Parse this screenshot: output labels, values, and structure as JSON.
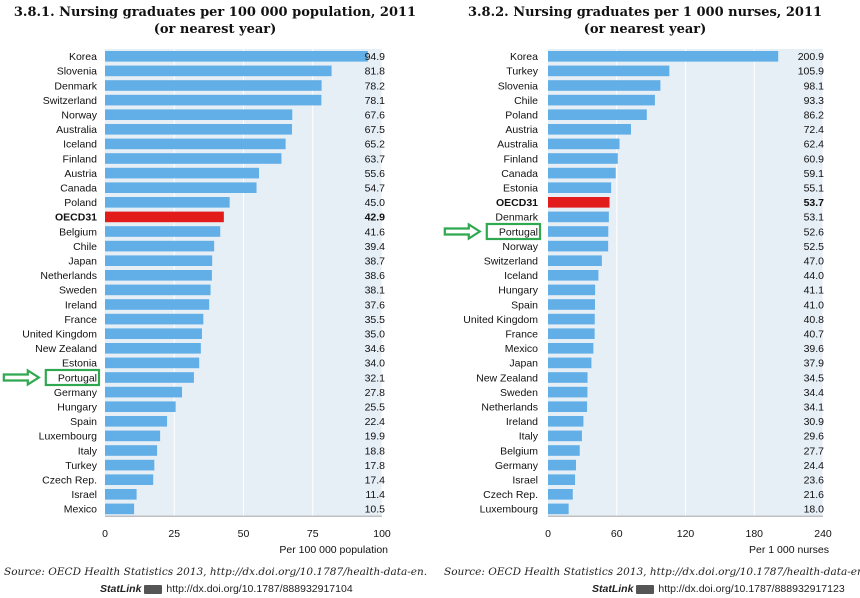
{
  "chart_data": [
    {
      "type": "bar",
      "orientation": "horizontal",
      "title": "3.8.1. Nursing graduates per 100 000 population, 2011",
      "subtitle": "(or nearest year)",
      "xlabel": "Per 100 000 population",
      "xlim": [
        0,
        100
      ],
      "xticks": [
        0,
        25,
        50,
        75,
        100
      ],
      "grid": true,
      "categories": [
        "Korea",
        "Slovenia",
        "Denmark",
        "Switzerland",
        "Norway",
        "Australia",
        "Iceland",
        "Finland",
        "Austria",
        "Canada",
        "Poland",
        "OECD31",
        "Belgium",
        "Chile",
        "Japan",
        "Netherlands",
        "Sweden",
        "Ireland",
        "France",
        "United Kingdom",
        "New Zealand",
        "Estonia",
        "Portugal",
        "Germany",
        "Hungary",
        "Spain",
        "Luxembourg",
        "Italy",
        "Turkey",
        "Czech Rep.",
        "Israel",
        "Mexico"
      ],
      "values": [
        94.9,
        81.8,
        78.2,
        78.1,
        67.6,
        67.5,
        65.2,
        63.7,
        55.6,
        54.7,
        45.0,
        42.9,
        41.6,
        39.4,
        38.7,
        38.6,
        38.1,
        37.6,
        35.5,
        35.0,
        34.6,
        34.0,
        32.1,
        27.8,
        25.5,
        22.4,
        19.9,
        18.8,
        17.8,
        17.4,
        11.4,
        10.5
      ],
      "value_labels": [
        "94.9",
        "81.8",
        "78.2",
        "78.1",
        "67.6",
        "67.5",
        "65.2",
        "63.7",
        "55.6",
        "54.7",
        "45.0",
        "42.9",
        "41.6",
        "39.4",
        "38.7",
        "38.6",
        "38.1",
        "37.6",
        "35.5",
        "35.0",
        "34.6",
        "34.0",
        "32.1",
        "27.8",
        "25.5",
        "22.4",
        "19.9",
        "18.8",
        "17.8",
        "17.4",
        "11.4",
        "10.5"
      ],
      "highlight": "OECD31",
      "marked": "Portugal"
    },
    {
      "type": "bar",
      "orientation": "horizontal",
      "title": "3.8.2. Nursing graduates per 1 000 nurses, 2011",
      "subtitle": "(or nearest year)",
      "xlabel": "Per 1 000 nurses",
      "xlim": [
        0,
        240
      ],
      "xticks": [
        0,
        60,
        120,
        180,
        240
      ],
      "grid": true,
      "categories": [
        "Korea",
        "Turkey",
        "Slovenia",
        "Chile",
        "Poland",
        "Austria",
        "Australia",
        "Finland",
        "Canada",
        "Estonia",
        "OECD31",
        "Denmark",
        "Portugal",
        "Norway",
        "Switzerland",
        "Iceland",
        "Hungary",
        "Spain",
        "United Kingdom",
        "France",
        "Mexico",
        "Japan",
        "New Zealand",
        "Sweden",
        "Netherlands",
        "Ireland",
        "Italy",
        "Belgium",
        "Germany",
        "Israel",
        "Czech Rep.",
        "Luxembourg"
      ],
      "values": [
        200.9,
        105.9,
        98.1,
        93.3,
        86.2,
        72.4,
        62.4,
        60.9,
        59.1,
        55.1,
        53.7,
        53.1,
        52.6,
        52.5,
        47.0,
        44.0,
        41.1,
        41.0,
        40.8,
        40.7,
        39.6,
        37.9,
        34.5,
        34.4,
        34.1,
        30.9,
        29.6,
        27.7,
        24.4,
        23.6,
        21.6,
        18.0
      ],
      "value_labels": [
        "200.9",
        "105.9",
        "98.1",
        "93.3",
        "86.2",
        "72.4",
        "62.4",
        "60.9",
        "59.1",
        "55.1",
        "53.7",
        "53.1",
        "52.6",
        "52.5",
        "47.0",
        "44.0",
        "41.1",
        "41.0",
        "40.8",
        "40.7",
        "39.6",
        "37.9",
        "34.5",
        "34.4",
        "34.1",
        "30.9",
        "29.6",
        "27.7",
        "24.4",
        "23.6",
        "21.6",
        "18.0"
      ],
      "highlight": "OECD31",
      "marked": "Portugal"
    }
  ],
  "colors": {
    "bar": "#62aee6",
    "highlight": "#e21b1b",
    "plot_bg": "#e6eef6",
    "marker": "#2fa84f"
  },
  "icons": {
    "arrow": "arrow-right-icon",
    "statlink_logo": "statlink-logo-icon"
  },
  "footer": [
    {
      "source": "Source: OECD Health Statistics 2013, http://dx.doi.org/10.1787/health-data-en.",
      "statlink_label": "StatLink",
      "statlink_url": "http://dx.doi.org/10.1787/888932917104"
    },
    {
      "source": "Source: OECD Health Statistics 2013, http://dx.doi.org/10.1787/health-data-en.",
      "statlink_label": "StatLink",
      "statlink_url": "http://dx.doi.org/10.1787/888932917123"
    }
  ]
}
